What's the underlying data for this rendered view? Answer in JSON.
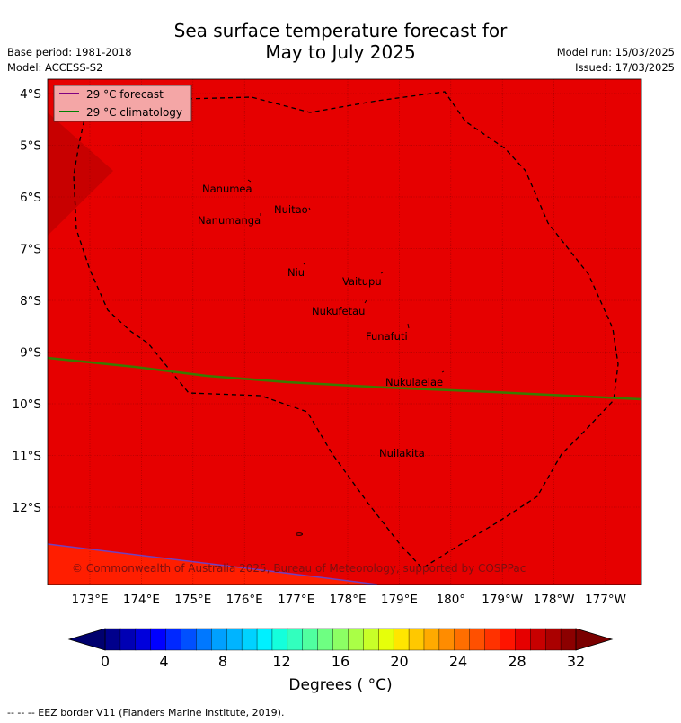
{
  "title_line1": "Sea surface temperature forecast for",
  "title_line2": "May to July 2025",
  "meta_left": [
    "Base period: 1981-2018",
    "Model: ACCESS-S2"
  ],
  "meta_right": [
    "Model run: 15/03/2025",
    "Issued: 17/03/2025"
  ],
  "legend": [
    {
      "label": "29 °C  forecast",
      "color": "#800080"
    },
    {
      "label": "29 °C  climatology",
      "color": "#008000"
    }
  ],
  "lat_labels": [
    "4°S",
    "5°S",
    "6°S",
    "7°S",
    "8°S",
    "9°S",
    "10°S",
    "11°S",
    "12°S"
  ],
  "lon_labels": [
    "173°E",
    "174°E",
    "175°E",
    "176°E",
    "177°E",
    "178°E",
    "179°E",
    "180°",
    "179°W",
    "178°W",
    "177°W"
  ],
  "places": [
    "Nanumea",
    "Nuitao",
    "Nanumanga",
    "Niu",
    "Vaitupu",
    "Nukufetau",
    "Funafuti",
    "Nukulaelae",
    "Nuilakita"
  ],
  "copyright": "© Commonwealth of Australia 2025, Bureau of Meteorology, supported by COSPPac",
  "colorbar_ticks": [
    "0",
    "4",
    "8",
    "12",
    "16",
    "20",
    "24",
    "28",
    "32"
  ],
  "colorbar_colors": [
    "#00008c",
    "#0000b4",
    "#0000dc",
    "#0000ff",
    "#0028ff",
    "#0050ff",
    "#0078ff",
    "#00a0ff",
    "#00b4ff",
    "#00d2ff",
    "#00f0ff",
    "#14ffdc",
    "#32ffbe",
    "#50ffa0",
    "#6eff82",
    "#8cff64",
    "#aaff46",
    "#c8ff28",
    "#e6ff0a",
    "#ffe600",
    "#ffc800",
    "#ffaa00",
    "#ff8c00",
    "#ff6e00",
    "#ff5000",
    "#ff3200",
    "#ff1400",
    "#e60000",
    "#c80000",
    "#aa0000",
    "#8c0000"
  ],
  "colorbar_title": "Degrees ( °C)",
  "eez_note": "--  --  -- EEZ border V11 (Flanders Marine Institute, 2019).",
  "colors": {
    "ocean": "#e60000",
    "warm_patch": "#c80000",
    "south_band": "#ff1e00"
  }
}
